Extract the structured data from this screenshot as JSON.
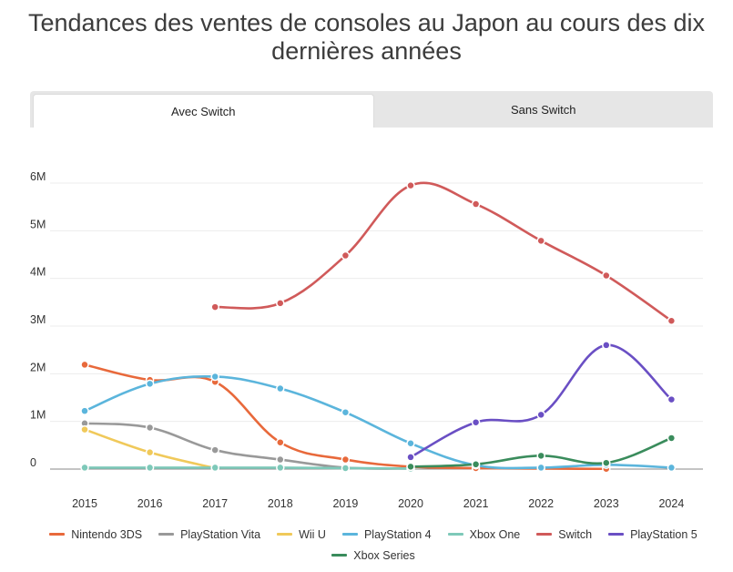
{
  "title": "Tendances des ventes de consoles au Japon au cours des dix dernières années",
  "tabs": [
    {
      "label": "Avec Switch",
      "active": true
    },
    {
      "label": "Sans Switch",
      "active": false
    }
  ],
  "chart_data": {
    "type": "line",
    "title": "Tendances des ventes de consoles au Japon au cours des dix dernières années",
    "xlabel": "",
    "ylabel": "",
    "x": [
      "2015",
      "2016",
      "2017",
      "2018",
      "2019",
      "2020",
      "2021",
      "2022",
      "2023",
      "2024"
    ],
    "ylim": [
      0,
      6000000
    ],
    "yticks": [
      {
        "value": 0,
        "label": "0"
      },
      {
        "value": 1000000,
        "label": "1M"
      },
      {
        "value": 2000000,
        "label": "2M"
      },
      {
        "value": 3000000,
        "label": "3M"
      },
      {
        "value": 4000000,
        "label": "4M"
      },
      {
        "value": 5000000,
        "label": "5M"
      },
      {
        "value": 6000000,
        "label": "6M"
      }
    ],
    "grid": true,
    "legend_position": "bottom",
    "series": [
      {
        "name": "Nintendo 3DS",
        "color": "#e8693b",
        "values": [
          2190000,
          1870000,
          1830000,
          560000,
          200000,
          50000,
          20000,
          10000,
          5000,
          null
        ]
      },
      {
        "name": "PlayStation Vita",
        "color": "#999999",
        "values": [
          960000,
          870000,
          400000,
          200000,
          30000,
          10000,
          null,
          null,
          null,
          null
        ]
      },
      {
        "name": "Wii U",
        "color": "#f0c95a",
        "values": [
          830000,
          350000,
          20000,
          null,
          null,
          null,
          null,
          null,
          null,
          null
        ]
      },
      {
        "name": "PlayStation 4",
        "color": "#5bb5dc",
        "values": [
          1220000,
          1790000,
          1940000,
          1690000,
          1190000,
          540000,
          80000,
          30000,
          90000,
          30000
        ]
      },
      {
        "name": "Xbox One",
        "color": "#7ec9b9",
        "values": [
          30000,
          30000,
          30000,
          30000,
          20000,
          10000,
          null,
          null,
          null,
          null
        ]
      },
      {
        "name": "Switch",
        "color": "#d05a5a",
        "values": [
          null,
          null,
          3400000,
          3480000,
          4480000,
          5950000,
          5560000,
          4790000,
          4060000,
          3110000
        ]
      },
      {
        "name": "PlayStation 5",
        "color": "#6a4fc4",
        "values": [
          null,
          null,
          null,
          null,
          null,
          250000,
          980000,
          1140000,
          2600000,
          1460000
        ]
      },
      {
        "name": "Xbox Series",
        "color": "#3a8c5c",
        "values": [
          null,
          null,
          null,
          null,
          null,
          50000,
          100000,
          280000,
          130000,
          650000
        ]
      }
    ]
  }
}
